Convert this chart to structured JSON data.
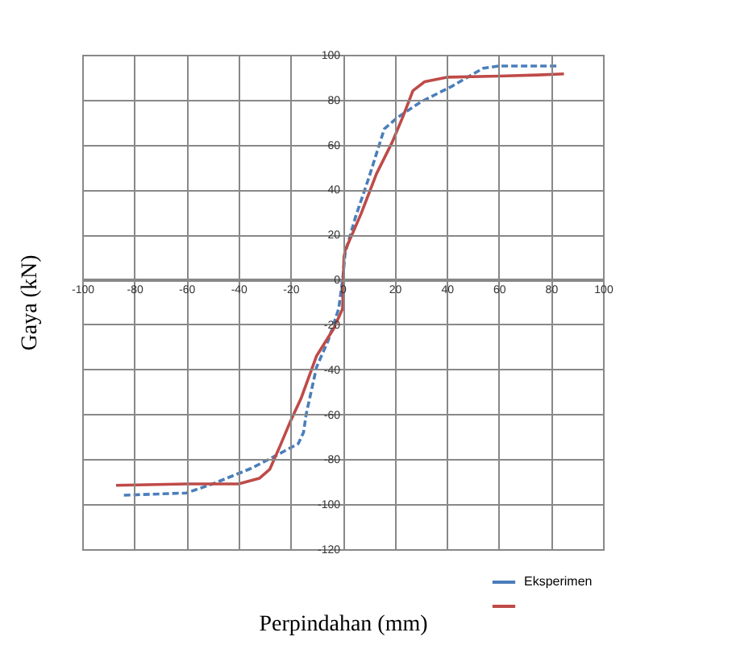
{
  "chart_data": {
    "type": "line",
    "xlabel": "Perpindahan (mm)",
    "ylabel": "Gaya (kN)",
    "xlim": [
      -100,
      100
    ],
    "xticks": [
      -100,
      -80,
      -60,
      -40,
      -20,
      0,
      20,
      40,
      60,
      80,
      100
    ],
    "ylim": [
      -120,
      100
    ],
    "yticks": [
      -120,
      -100,
      -80,
      -60,
      -40,
      -20,
      0,
      20,
      40,
      60,
      80,
      100
    ],
    "grid": true,
    "legend": "bottom right",
    "series": [
      {
        "name": "Eksperimen",
        "color": "#4a7ebb",
        "line_style": "dashed",
        "x": [
          -84,
          -60,
          -50,
          -35,
          -25,
          -17,
          -15,
          -14,
          -10,
          -5.5,
          -1.5,
          0,
          1,
          5,
          10,
          16,
          21,
          30,
          42,
          54,
          60,
          83
        ],
        "values": [
          -96,
          -95,
          -91,
          -84,
          -78,
          -73,
          -68,
          -60,
          -39,
          -27,
          -13,
          0,
          12,
          28,
          45,
          67,
          72,
          79,
          86,
          94,
          95,
          95
        ]
      },
      {
        "color": "#be4b48",
        "line_style": "solid",
        "x": [
          -87,
          -60,
          -40,
          -32,
          -28,
          -24,
          -20,
          -16,
          -10,
          -3.5,
          0,
          0.5,
          1,
          7,
          13,
          19,
          23,
          27,
          31.5,
          40,
          60,
          75,
          85
        ],
        "values": [
          -91.6,
          -91,
          -91,
          -88.5,
          -84.5,
          -74,
          -63,
          -53,
          -34,
          -22,
          -13,
          10,
          13,
          29,
          47,
          61,
          72,
          84,
          88,
          90,
          90.5,
          91,
          91.5
        ]
      }
    ]
  }
}
